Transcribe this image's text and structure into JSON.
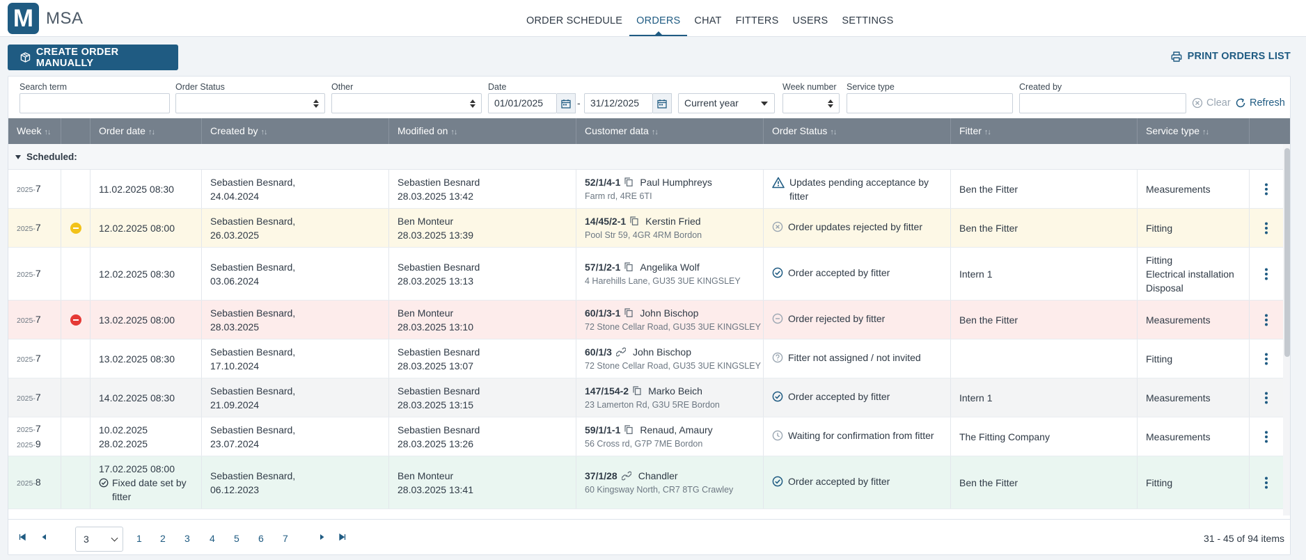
{
  "app": {
    "logo_letter": "M",
    "name": "MSA"
  },
  "nav": [
    {
      "label": "ORDER SCHEDULE",
      "active": false
    },
    {
      "label": "ORDERS",
      "active": true
    },
    {
      "label": "CHAT",
      "active": false
    },
    {
      "label": "FITTERS",
      "active": false
    },
    {
      "label": "USERS",
      "active": false
    },
    {
      "label": "SETTINGS",
      "active": false
    }
  ],
  "actions": {
    "create_label": "CREATE ORDER MANUALLY",
    "print_label": "PRINT ORDERS LIST"
  },
  "filters": {
    "search_label": "Search term",
    "search_value": "",
    "status_label": "Order Status",
    "status_value": "",
    "other_label": "Other",
    "other_value": "",
    "date_label": "Date",
    "date_from": "01/01/2025",
    "date_sep": "-",
    "date_to": "31/12/2025",
    "range_value": "Current year",
    "week_label": "Week number",
    "week_value": "",
    "service_label": "Service type",
    "service_value": "",
    "created_label": "Created by",
    "created_value": "",
    "clear_label": "Clear",
    "refresh_label": "Refresh"
  },
  "columns": {
    "week": "Week",
    "order_date": "Order date",
    "created_by": "Created by",
    "modified_on": "Modified on",
    "customer": "Customer data",
    "status": "Order Status",
    "fitter": "Fitter",
    "service": "Service type",
    "sort_glyph": "↑↓"
  },
  "group_label": "Scheduled:",
  "rows": [
    {
      "year": "2025",
      "week": "7",
      "year2": "",
      "week2": "",
      "indicator": "",
      "date1": "11.02.2025 08:30",
      "date2": "",
      "fixed": "",
      "created1": "Sebastien Besnard,",
      "created2": "24.04.2024",
      "modified1": "Sebastien Besnard",
      "modified2": "28.03.2025 13:42",
      "order_no": "52/1/4-1",
      "link": "copy",
      "customer": "Paul Humphreys",
      "address": "Farm rd, 4RE 6TI",
      "status_icon": "warning",
      "status": "Updates pending acceptance by fitter",
      "fitter": "Ben the Fitter",
      "service": [
        "Measurements"
      ],
      "bg": "#ffffff"
    },
    {
      "year": "2025",
      "week": "7",
      "year2": "",
      "week2": "",
      "indicator": "yellow",
      "date1": "12.02.2025 08:00",
      "date2": "",
      "fixed": "",
      "created1": "Sebastien Besnard,",
      "created2": "26.03.2025",
      "modified1": "Ben Monteur",
      "modified2": "28.03.2025 13:39",
      "order_no": "14/45/2-1",
      "link": "copy",
      "customer": "Kerstin Fried",
      "address": "Pool Str 59, 4GR 4RM Bordon",
      "status_icon": "x-circle",
      "status": "Order updates rejected by fitter",
      "fitter": "Ben the Fitter",
      "service": [
        "Fitting"
      ],
      "bg": "#fdf8e6"
    },
    {
      "year": "2025",
      "week": "7",
      "year2": "",
      "week2": "",
      "indicator": "",
      "date1": "12.02.2025 08:30",
      "date2": "",
      "fixed": "",
      "created1": "Sebastien Besnard,",
      "created2": "03.06.2024",
      "modified1": "Sebastien Besnard",
      "modified2": "28.03.2025 13:13",
      "order_no": "57/1/2-1",
      "link": "copy",
      "customer": "Angelika Wolf",
      "address": "4 Harehills Lane, GU35 3UE KINGSLEY",
      "status_icon": "check",
      "status": "Order accepted by fitter",
      "fitter": "Intern 1",
      "service": [
        "Fitting",
        "Electrical installation",
        "Disposal"
      ],
      "bg": "#ffffff"
    },
    {
      "year": "2025",
      "week": "7",
      "year2": "",
      "week2": "",
      "indicator": "red",
      "date1": "13.02.2025 08:00",
      "date2": "",
      "fixed": "",
      "created1": "Sebastien Besnard,",
      "created2": "28.03.2025",
      "modified1": "Ben Monteur",
      "modified2": "28.03.2025 13:10",
      "order_no": "60/1/3-1",
      "link": "copy",
      "customer": "John Bischop",
      "address": "72 Stone Cellar Road, GU35 3UE KINGSLEY",
      "status_icon": "minus-circle",
      "status": "Order rejected by fitter",
      "fitter": "Ben the Fitter",
      "service": [
        "Measurements"
      ],
      "bg": "#fdeceb"
    },
    {
      "year": "2025",
      "week": "7",
      "year2": "",
      "week2": "",
      "indicator": "",
      "date1": "13.02.2025 08:30",
      "date2": "",
      "fixed": "",
      "created1": "Sebastien Besnard,",
      "created2": "17.10.2024",
      "modified1": "Sebastien Besnard",
      "modified2": "28.03.2025 13:07",
      "order_no": "60/1/3",
      "link": "chain",
      "customer": "John Bischop",
      "address": "72 Stone Cellar Road, GU35 3UE KINGSLEY",
      "status_icon": "question",
      "status": "Fitter not assigned / not invited",
      "fitter": "",
      "service": [
        "Fitting"
      ],
      "bg": "#ffffff"
    },
    {
      "year": "2025",
      "week": "7",
      "year2": "",
      "week2": "",
      "indicator": "",
      "date1": "14.02.2025 08:30",
      "date2": "",
      "fixed": "",
      "created1": "Sebastien Besnard,",
      "created2": "21.09.2024",
      "modified1": "Sebastien Besnard",
      "modified2": "28.03.2025 13:15",
      "order_no": "147/154-2",
      "link": "copy",
      "customer": "Marko Beich",
      "address": "23 Lamerton Rd, G3U 5RE Bordon",
      "status_icon": "check",
      "status": "Order accepted by fitter",
      "fitter": "Intern 1",
      "service": [
        "Measurements"
      ],
      "bg": "#f3f4f5"
    },
    {
      "year": "2025",
      "week": "7",
      "year2": "2025",
      "week2": "9",
      "indicator": "",
      "date1": "10.02.2025",
      "date2": "28.02.2025",
      "fixed": "",
      "created1": "Sebastien Besnard,",
      "created2": "23.07.2024",
      "modified1": "Sebastien Besnard",
      "modified2": "28.03.2025 13:26",
      "order_no": "59/1/1-1",
      "link": "copy",
      "customer": "Renaud, Amaury",
      "address": "56 Cross rd, G7P 7ME Bordon",
      "status_icon": "clock",
      "status": "Waiting for confirmation from fitter",
      "fitter": "The Fitting Company",
      "service": [
        "Measurements"
      ],
      "bg": "#ffffff"
    },
    {
      "year": "2025",
      "week": "8",
      "year2": "",
      "week2": "",
      "indicator": "",
      "date1": "17.02.2025 08:00",
      "date2": "",
      "fixed": "Fixed date set by fitter",
      "created1": "Sebastien Besnard,",
      "created2": "06.12.2023",
      "modified1": "Ben Monteur",
      "modified2": "28.03.2025 13:41",
      "order_no": "37/1/28",
      "link": "chain",
      "customer": "Chandler",
      "address": "60 Kingsway North, CR7 8TG Crawley",
      "status_icon": "check",
      "status": "Order accepted by fitter",
      "fitter": "Ben the Fitter",
      "service": [
        "Fitting"
      ],
      "bg": "#eaf6f1"
    }
  ],
  "pager": {
    "page_size": "3",
    "pages": [
      "1",
      "2",
      "3",
      "4",
      "5",
      "6",
      "7"
    ],
    "info": "31 - 45 of 94 items"
  },
  "colors": {
    "brand": "#1f5b82",
    "header": "#75808c",
    "warn_yellow": "#f2c21a",
    "error_red": "#e53935"
  }
}
